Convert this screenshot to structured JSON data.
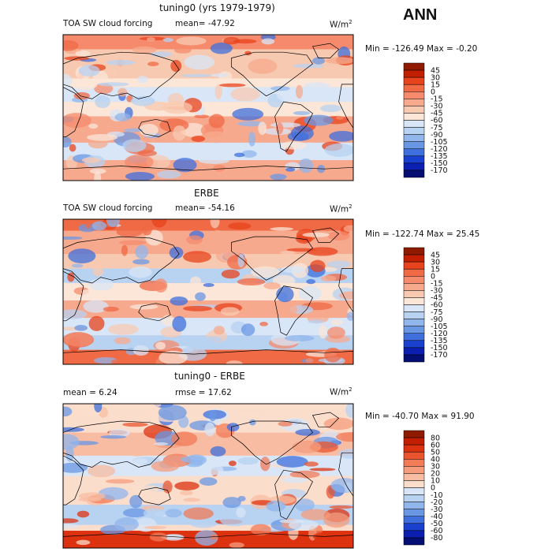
{
  "header": {
    "season_label": "ANN"
  },
  "colors": {
    "frame": "#000000",
    "ocean_base": "#f6c7a6",
    "land_outline": "#000000"
  },
  "chart_data": [
    {
      "type": "heatmap",
      "title": "tuning0 (yrs 1979-1979)",
      "variable_label": "TOA SW cloud forcing",
      "mean_label": "mean=",
      "mean_value": "-47.92",
      "units_label": "W/m",
      "units_exponent": "2",
      "min_label": "Min =",
      "min_value": "-126.49",
      "max_label": "Max =",
      "max_value": "-0.20",
      "colorbar": {
        "levels": [
          "45",
          "30",
          "15",
          "0",
          "-15",
          "-30",
          "-45",
          "-60",
          "-75",
          "-90",
          "-105",
          "-120",
          "-135",
          "-150",
          "-170"
        ],
        "colors": [
          "#8f1a00",
          "#c21f00",
          "#e8431c",
          "#f06a45",
          "#f58b6c",
          "#f7a98e",
          "#f8c9b1",
          "#fbe6d8",
          "#d8e6f7",
          "#b8d2f2",
          "#90b6ec",
          "#6a97e4",
          "#3f6fdc",
          "#1a40cf",
          "#0b1fb0",
          "#050e72"
        ]
      }
    },
    {
      "type": "heatmap",
      "title": "ERBE",
      "variable_label": "TOA SW cloud forcing",
      "mean_label": "mean=",
      "mean_value": "-54.16",
      "units_label": "W/m",
      "units_exponent": "2",
      "min_label": "Min =",
      "min_value": "-122.74",
      "max_label": "Max =",
      "max_value": "25.45",
      "colorbar": {
        "levels": [
          "45",
          "30",
          "15",
          "0",
          "-15",
          "-30",
          "-45",
          "-60",
          "-75",
          "-90",
          "-105",
          "-120",
          "-135",
          "-150",
          "-170"
        ],
        "colors": [
          "#8f1a00",
          "#c21f00",
          "#e8431c",
          "#f06a45",
          "#f58b6c",
          "#f7a98e",
          "#f8c9b1",
          "#fbe6d8",
          "#d8e6f7",
          "#b8d2f2",
          "#90b6ec",
          "#6a97e4",
          "#3f6fdc",
          "#1a40cf",
          "#0b1fb0",
          "#050e72"
        ]
      }
    },
    {
      "type": "heatmap",
      "title": "tuning0 - ERBE",
      "mean_label": "mean =",
      "mean_value": "6.24",
      "rmse_label": "rmse =",
      "rmse_value": "17.62",
      "units_label": "W/m",
      "units_exponent": "2",
      "min_label": "Min =",
      "min_value": "-40.70",
      "max_label": "Max =",
      "max_value": "91.90",
      "colorbar": {
        "levels": [
          "80",
          "60",
          "50",
          "40",
          "30",
          "20",
          "10",
          "0",
          "-10",
          "-20",
          "-30",
          "-40",
          "-50",
          "-60",
          "-80"
        ],
        "colors": [
          "#8f1a00",
          "#c21f00",
          "#dd3210",
          "#ea5530",
          "#f27b58",
          "#f59c7d",
          "#f8bca2",
          "#fbddcc",
          "#d8e6f7",
          "#b8d2f2",
          "#90b6ec",
          "#6a97e4",
          "#3f6fdc",
          "#1a40cf",
          "#0b1fb0",
          "#050e72"
        ]
      }
    }
  ]
}
